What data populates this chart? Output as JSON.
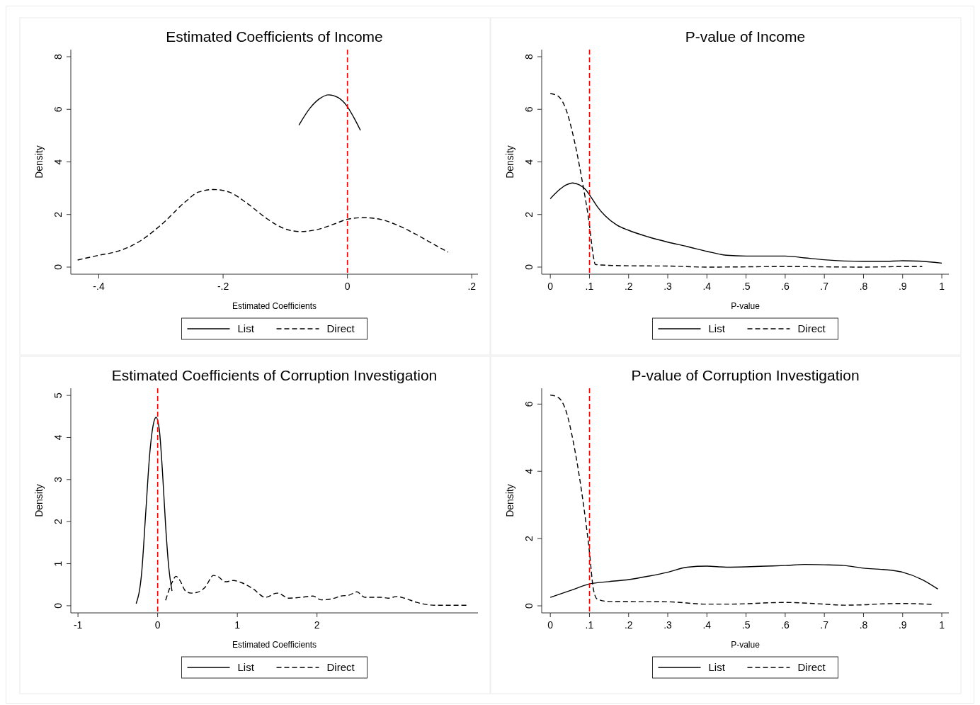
{
  "chart_data": [
    {
      "type": "line",
      "title": "Estimated Coefficients of Income",
      "xlabel": "Estimated Coefficients",
      "ylabel": "Density",
      "xlim": [
        -0.445,
        0.21
      ],
      "xticks": [
        {
          "value": -0.4,
          "label": "-.4"
        },
        {
          "value": -0.2,
          "label": "-.2"
        },
        0,
        {
          "value": 0.2,
          "label": ".2"
        }
      ],
      "ylim": [
        -0.27,
        8.27
      ],
      "yticks": [
        0,
        2,
        4,
        6,
        8
      ],
      "grid": false,
      "legend": "bottom",
      "ref_lines": [
        {
          "axis": "x",
          "value": 0,
          "color": "#ff0000",
          "line_style": "dashed"
        }
      ],
      "series": [
        {
          "name": "List",
          "color": "#000000",
          "line_style": "solid",
          "x": [
            -0.078,
            -0.06,
            -0.045,
            -0.03,
            -0.015,
            0,
            0.01,
            0.021
          ],
          "values": [
            5.4,
            6.05,
            6.4,
            6.55,
            6.45,
            6.1,
            5.7,
            5.2
          ]
        },
        {
          "name": "Direct",
          "color": "#000000",
          "line_style": "dashed",
          "x": [
            -0.434,
            -0.4,
            -0.37,
            -0.34,
            -0.3,
            -0.26,
            -0.24,
            -0.215,
            -0.19,
            -0.16,
            -0.13,
            -0.1,
            -0.075,
            -0.05,
            -0.02,
            0,
            0.025,
            0.05,
            0.08,
            0.11,
            0.14,
            0.162
          ],
          "values": [
            0.27,
            0.45,
            0.6,
            0.9,
            1.6,
            2.5,
            2.85,
            2.95,
            2.85,
            2.4,
            1.85,
            1.45,
            1.35,
            1.42,
            1.65,
            1.82,
            1.88,
            1.83,
            1.6,
            1.25,
            0.85,
            0.57
          ]
        }
      ]
    },
    {
      "type": "line",
      "title": "P-value of Income",
      "xlabel": "P-value",
      "ylabel": "Density",
      "xlim": [
        -0.022,
        1.018
      ],
      "xticks": [
        0,
        {
          "value": 0.1,
          "label": ".1"
        },
        {
          "value": 0.2,
          "label": ".2"
        },
        {
          "value": 0.3,
          "label": ".3"
        },
        {
          "value": 0.4,
          "label": ".4"
        },
        {
          "value": 0.5,
          "label": ".5"
        },
        {
          "value": 0.6,
          "label": ".6"
        },
        {
          "value": 0.7,
          "label": ".7"
        },
        {
          "value": 0.8,
          "label": ".8"
        },
        {
          "value": 0.9,
          "label": ".9"
        },
        1
      ],
      "ylim": [
        -0.27,
        8.27
      ],
      "yticks": [
        0,
        2,
        4,
        6,
        8
      ],
      "grid": false,
      "legend": "bottom",
      "ref_lines": [
        {
          "axis": "x",
          "value": 0.1,
          "color": "#ff0000",
          "line_style": "dashed"
        }
      ],
      "series": [
        {
          "name": "List",
          "color": "#000000",
          "line_style": "solid",
          "x": [
            0,
            0.02,
            0.04,
            0.057,
            0.075,
            0.09,
            0.1,
            0.12,
            0.14,
            0.17,
            0.2,
            0.25,
            0.3,
            0.35,
            0.4,
            0.45,
            0.5,
            0.55,
            0.6,
            0.65,
            0.7,
            0.8,
            0.85,
            0.9,
            0.94,
            1
          ],
          "values": [
            2.6,
            2.9,
            3.12,
            3.2,
            3.12,
            2.95,
            2.75,
            2.3,
            1.95,
            1.6,
            1.4,
            1.15,
            0.95,
            0.78,
            0.6,
            0.45,
            0.42,
            0.42,
            0.42,
            0.35,
            0.28,
            0.22,
            0.22,
            0.24,
            0.23,
            0.15
          ]
        },
        {
          "name": "Direct",
          "color": "#000000",
          "line_style": "dashed",
          "x": [
            0,
            0.02,
            0.04,
            0.06,
            0.08,
            0.1,
            0.11,
            0.115,
            0.13,
            0.2,
            0.3,
            0.4,
            0.6,
            0.8,
            0.9,
            0.95
          ],
          "values": [
            6.6,
            6.5,
            6.0,
            4.9,
            3.4,
            1.6,
            0.4,
            0.1,
            0.08,
            0.05,
            0.04,
            0.0,
            0.02,
            0.0,
            0.02,
            0.02
          ]
        }
      ]
    },
    {
      "type": "line",
      "title": "Estimated Coefficients of Corruption Investigation",
      "xlabel": "Estimated Coefficients",
      "ylabel": "Density",
      "xlim": [
        -1.09,
        4.02
      ],
      "xticks": [
        -1,
        0,
        1,
        2
      ],
      "ylim": [
        -0.17,
        5.17
      ],
      "yticks": [
        0,
        1,
        2,
        3,
        4,
        5
      ],
      "grid": false,
      "legend": "bottom",
      "ref_lines": [
        {
          "axis": "x",
          "value": 0,
          "color": "#ff0000",
          "line_style": "dashed"
        }
      ],
      "series": [
        {
          "name": "List",
          "color": "#000000",
          "line_style": "solid",
          "x": [
            -0.27,
            -0.2,
            -0.15,
            -0.1,
            -0.05,
            -0.02,
            0.02,
            0.06,
            0.1,
            0.14,
            0.18
          ],
          "values": [
            0.05,
            0.8,
            2.2,
            3.6,
            4.35,
            4.48,
            4.2,
            3.2,
            1.9,
            0.9,
            0.35
          ]
        },
        {
          "name": "Direct",
          "color": "#000000",
          "line_style": "dashed",
          "x": [
            0.1,
            0.18,
            0.23,
            0.28,
            0.35,
            0.42,
            0.5,
            0.6,
            0.7,
            0.75,
            0.85,
            0.95,
            1.05,
            1.2,
            1.35,
            1.5,
            1.65,
            1.8,
            1.95,
            2.05,
            2.2,
            2.3,
            2.4,
            2.5,
            2.6,
            2.7,
            2.8,
            2.9,
            3.0,
            3.1,
            3.25,
            3.5,
            3.9
          ],
          "values": [
            0.13,
            0.55,
            0.7,
            0.6,
            0.35,
            0.3,
            0.32,
            0.45,
            0.72,
            0.7,
            0.57,
            0.6,
            0.55,
            0.4,
            0.2,
            0.3,
            0.18,
            0.2,
            0.23,
            0.14,
            0.17,
            0.23,
            0.25,
            0.33,
            0.2,
            0.2,
            0.2,
            0.18,
            0.22,
            0.18,
            0.08,
            0.01,
            0.01
          ]
        }
      ]
    },
    {
      "type": "line",
      "title": "P-value of Corruption Investigation",
      "xlabel": "P-value",
      "ylabel": "Density",
      "xlim": [
        -0.022,
        1.018
      ],
      "xticks": [
        0,
        {
          "value": 0.1,
          "label": ".1"
        },
        {
          "value": 0.2,
          "label": ".2"
        },
        {
          "value": 0.3,
          "label": ".3"
        },
        {
          "value": 0.4,
          "label": ".4"
        },
        {
          "value": 0.5,
          "label": ".5"
        },
        {
          "value": 0.6,
          "label": ".6"
        },
        {
          "value": 0.7,
          "label": ".7"
        },
        {
          "value": 0.8,
          "label": ".8"
        },
        {
          "value": 0.9,
          "label": ".9"
        },
        1
      ],
      "ylim": [
        -0.21,
        6.47
      ],
      "yticks": [
        0,
        2,
        4,
        6
      ],
      "grid": false,
      "legend": "bottom",
      "ref_lines": [
        {
          "axis": "x",
          "value": 0.1,
          "color": "#ff0000",
          "line_style": "dashed"
        }
      ],
      "series": [
        {
          "name": "List",
          "color": "#000000",
          "line_style": "solid",
          "x": [
            0,
            0.05,
            0.1,
            0.15,
            0.2,
            0.25,
            0.3,
            0.35,
            0.4,
            0.45,
            0.5,
            0.55,
            0.6,
            0.65,
            0.7,
            0.75,
            0.8,
            0.85,
            0.9,
            0.95,
            0.99
          ],
          "values": [
            0.25,
            0.45,
            0.65,
            0.72,
            0.78,
            0.88,
            1.0,
            1.15,
            1.18,
            1.15,
            1.16,
            1.18,
            1.2,
            1.23,
            1.22,
            1.2,
            1.12,
            1.08,
            1.0,
            0.78,
            0.5
          ]
        },
        {
          "name": "Direct",
          "color": "#000000",
          "line_style": "dashed",
          "x": [
            0,
            0.02,
            0.04,
            0.06,
            0.08,
            0.1,
            0.11,
            0.12,
            0.15,
            0.3,
            0.4,
            0.45,
            0.6,
            0.7,
            0.75,
            0.8,
            0.85,
            0.9,
            0.98
          ],
          "values": [
            6.27,
            6.2,
            5.8,
            4.8,
            3.4,
            1.6,
            0.5,
            0.2,
            0.13,
            0.12,
            0.05,
            0.05,
            0.1,
            0.05,
            0.02,
            0.03,
            0.06,
            0.07,
            0.04
          ]
        }
      ]
    }
  ]
}
